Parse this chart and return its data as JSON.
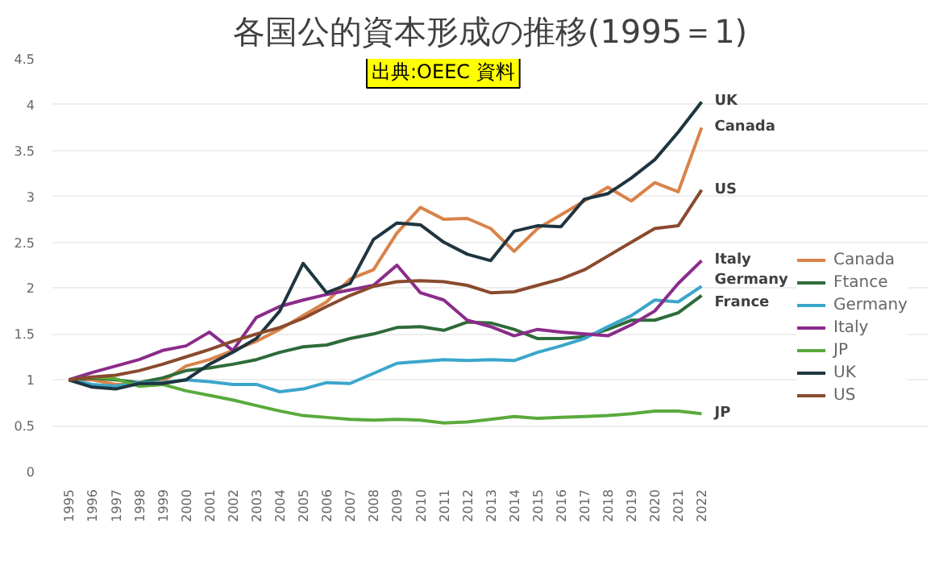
{
  "chart_data": {
    "type": "line",
    "title": "各国公的資本形成の推移(1995＝1)",
    "categories": [
      "1995",
      "1996",
      "1997",
      "1998",
      "1999",
      "2000",
      "2001",
      "2002",
      "2003",
      "2004",
      "2005",
      "2006",
      "2007",
      "2008",
      "2009",
      "2010",
      "2011",
      "2012",
      "2013",
      "2014",
      "2015",
      "2016",
      "2017",
      "2018",
      "2019",
      "2020",
      "2021",
      "2022"
    ],
    "series": [
      {
        "name": "Canada",
        "color": "#d9834a",
        "values": [
          1,
          1.0,
          0.95,
          0.95,
          0.98,
          1.15,
          1.22,
          1.32,
          1.42,
          1.55,
          1.7,
          1.85,
          2.1,
          2.2,
          2.6,
          2.88,
          2.75,
          2.76,
          2.65,
          2.4,
          2.65,
          2.8,
          2.95,
          3.1,
          2.95,
          3.15,
          3.05,
          3.75
        ]
      },
      {
        "name": "Ftance",
        "color": "#2e6b3a",
        "values": [
          1,
          1.02,
          1.0,
          0.97,
          1.02,
          1.1,
          1.13,
          1.17,
          1.22,
          1.3,
          1.36,
          1.38,
          1.45,
          1.5,
          1.57,
          1.58,
          1.54,
          1.63,
          1.62,
          1.55,
          1.45,
          1.45,
          1.47,
          1.55,
          1.65,
          1.65,
          1.73,
          1.92
        ]
      },
      {
        "name": "Germany",
        "color": "#3ba6cb",
        "values": [
          1,
          0.95,
          0.93,
          0.97,
          0.97,
          1.0,
          0.98,
          0.95,
          0.95,
          0.87,
          0.9,
          0.97,
          0.96,
          1.07,
          1.18,
          1.2,
          1.22,
          1.21,
          1.22,
          1.21,
          1.3,
          1.37,
          1.45,
          1.58,
          1.7,
          1.87,
          1.85,
          2.02
        ]
      },
      {
        "name": "Italy",
        "color": "#8b2c8b",
        "values": [
          1,
          1.08,
          1.15,
          1.22,
          1.32,
          1.37,
          1.52,
          1.32,
          1.68,
          1.8,
          1.87,
          1.93,
          1.98,
          2.03,
          2.25,
          1.95,
          1.87,
          1.65,
          1.58,
          1.48,
          1.55,
          1.52,
          1.5,
          1.48,
          1.6,
          1.75,
          2.05,
          2.3
        ]
      },
      {
        "name": "JP",
        "color": "#5aaa3c",
        "values": [
          1,
          1.03,
          1.01,
          0.93,
          0.95,
          0.88,
          0.83,
          0.78,
          0.72,
          0.66,
          0.61,
          0.59,
          0.57,
          0.56,
          0.57,
          0.56,
          0.53,
          0.54,
          0.57,
          0.6,
          0.58,
          0.59,
          0.6,
          0.61,
          0.63,
          0.66,
          0.66,
          0.63
        ]
      },
      {
        "name": "UK",
        "color": "#1f3540",
        "values": [
          1,
          0.92,
          0.9,
          0.96,
          0.96,
          1.0,
          1.17,
          1.3,
          1.45,
          1.75,
          2.27,
          1.95,
          2.05,
          2.53,
          2.71,
          2.69,
          2.5,
          2.37,
          2.3,
          2.62,
          2.68,
          2.67,
          2.97,
          3.03,
          3.2,
          3.4,
          3.7,
          4.03
        ]
      },
      {
        "name": "US",
        "color": "#8a4a2e",
        "values": [
          1,
          1.03,
          1.05,
          1.1,
          1.17,
          1.25,
          1.33,
          1.42,
          1.5,
          1.57,
          1.67,
          1.8,
          1.92,
          2.02,
          2.07,
          2.08,
          2.07,
          2.03,
          1.95,
          1.96,
          2.03,
          2.1,
          2.2,
          2.35,
          2.5,
          2.65,
          2.68,
          3.07
        ]
      }
    ],
    "ylim": [
      0,
      4.5
    ],
    "yticks": [
      0,
      0.5,
      1,
      1.5,
      2,
      2.5,
      3,
      3.5,
      4,
      4.5
    ],
    "grid": "y",
    "legend": "right",
    "marker": "none",
    "line_style": "solid",
    "annotations": [
      "出典:OEEC 資料",
      {
        "text": "UK",
        "x": "2022",
        "y": 4.03
      },
      {
        "text": "Canada",
        "x": "2022",
        "y": 3.75
      },
      {
        "text": "US",
        "x": "2022",
        "y": 3.07
      },
      {
        "text": "Italy",
        "x": "2022",
        "y": 2.3
      },
      {
        "text": "Germany",
        "x": "2022",
        "y": 2.08
      },
      {
        "text": "France",
        "x": "2022",
        "y": 1.84
      },
      {
        "text": "JP",
        "x": "2022",
        "y": 0.63
      }
    ]
  }
}
